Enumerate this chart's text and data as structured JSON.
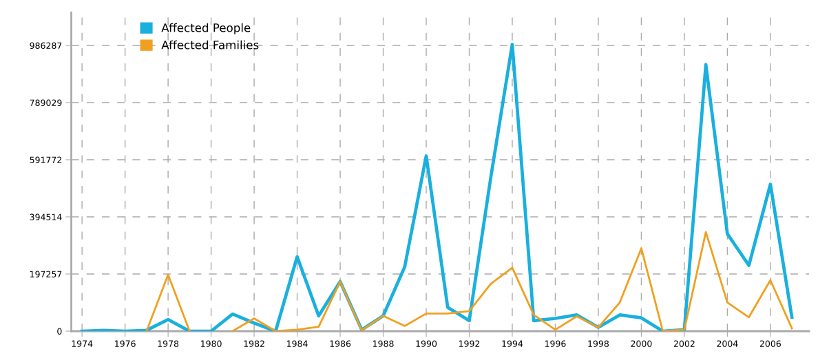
{
  "chart_data": {
    "type": "line",
    "x": [
      1974,
      1975,
      1976,
      1977,
      1978,
      1979,
      1980,
      1981,
      1982,
      1983,
      1984,
      1985,
      1986,
      1987,
      1988,
      1989,
      1990,
      1991,
      1992,
      1993,
      1994,
      1995,
      1996,
      1997,
      1998,
      1999,
      2000,
      2001,
      2002,
      2003,
      2004,
      2005,
      2006,
      2007
    ],
    "series": [
      {
        "name": "Affected People",
        "color": "#1ab0de",
        "values": [
          0,
          3000,
          0,
          3000,
          40000,
          0,
          0,
          59000,
          28000,
          0,
          257000,
          53000,
          171000,
          5000,
          53000,
          222000,
          605000,
          82000,
          36000,
          530000,
          990000,
          36000,
          44000,
          56000,
          13000,
          56000,
          46000,
          0,
          5000,
          920000,
          336000,
          227000,
          507000,
          48000
        ]
      },
      {
        "name": "Affected Families",
        "color": "#f0a020",
        "values": [
          null,
          null,
          null,
          0,
          195000,
          0,
          null,
          0,
          44000,
          0,
          5000,
          15000,
          171000,
          3000,
          53000,
          18000,
          61000,
          61000,
          69000,
          163000,
          219000,
          56000,
          5000,
          51000,
          13000,
          99000,
          286000,
          0,
          5000,
          342000,
          99000,
          48000,
          176000,
          10000
        ]
      }
    ],
    "xlim": [
      1973.5,
      2007.8
    ],
    "ylim": [
      0,
      1100000
    ],
    "xticks": [
      1974,
      1976,
      1978,
      1980,
      1982,
      1984,
      1986,
      1988,
      1990,
      1992,
      1994,
      1996,
      1998,
      2000,
      2002,
      2004,
      2006
    ],
    "yticks": [
      0,
      197257,
      394514,
      591772,
      789029,
      986287
    ],
    "grid": true,
    "legend": "top left",
    "line_style": "solid",
    "marker": "none"
  }
}
